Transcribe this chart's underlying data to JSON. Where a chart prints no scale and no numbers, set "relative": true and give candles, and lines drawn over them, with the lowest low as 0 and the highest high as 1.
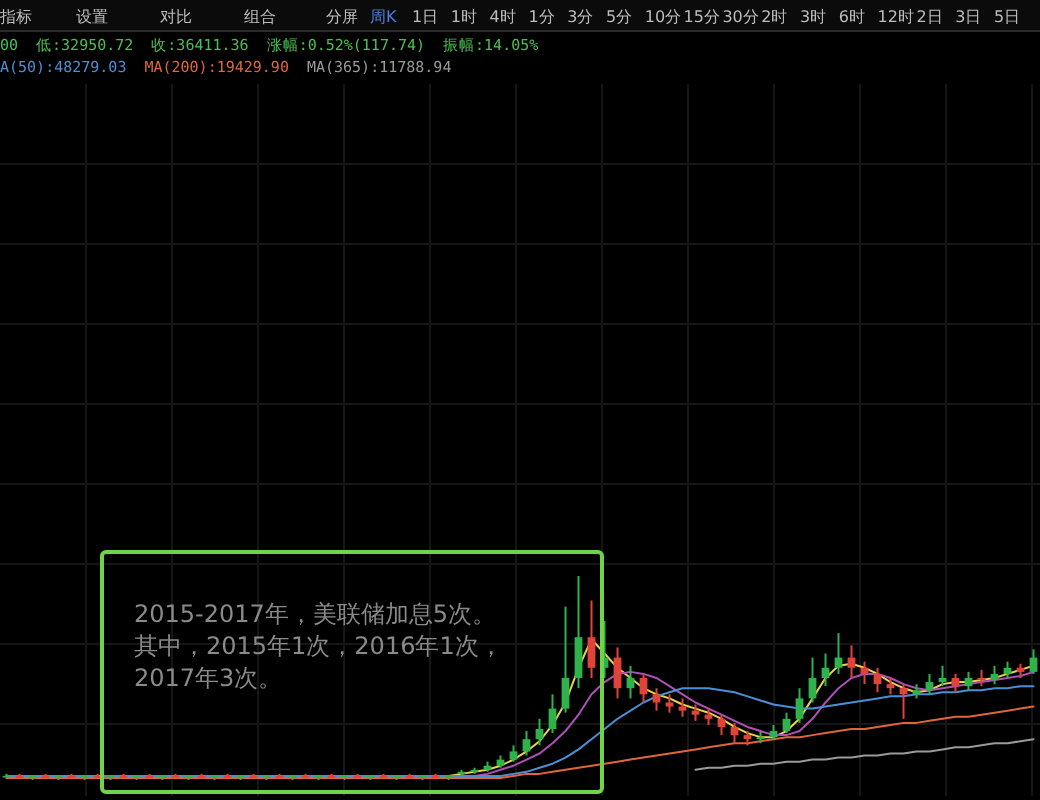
{
  "chart_data": {
    "type": "candlestick",
    "relative": true,
    "grid": true,
    "categories": [
      null,
      null,
      null,
      null,
      null,
      null,
      null,
      null,
      null,
      null,
      null,
      null,
      null,
      null,
      null,
      null,
      null,
      null,
      null,
      null,
      null,
      null,
      null,
      null,
      null,
      null,
      null,
      null,
      null,
      null,
      null,
      null,
      null,
      null,
      null,
      null,
      null,
      null,
      null,
      null,
      null,
      null,
      null,
      null,
      null,
      null,
      null,
      null,
      null,
      null,
      null,
      null,
      null,
      null,
      null,
      null,
      null,
      null,
      null,
      null,
      null,
      null,
      null,
      null,
      null,
      null,
      null,
      null,
      null,
      null,
      null,
      null,
      null,
      null,
      null,
      null,
      null,
      null,
      null,
      null
    ],
    "ohlc": [
      [
        0.02,
        0.03,
        0.01,
        0.02
      ],
      [
        0.02,
        0.03,
        0.01,
        0.01
      ],
      [
        0.01,
        0.02,
        0,
        0.02
      ],
      [
        0.02,
        0.03,
        0.01,
        0.01
      ],
      [
        0.01,
        0.02,
        0,
        0.02
      ],
      [
        0.02,
        0.03,
        0.01,
        0.01
      ],
      [
        0.01,
        0.02,
        0,
        0.02
      ],
      [
        0.02,
        0.03,
        0.01,
        0.01
      ],
      [
        0.01,
        0.02,
        0,
        0.02
      ],
      [
        0.02,
        0.03,
        0.01,
        0.01
      ],
      [
        0.01,
        0.02,
        0,
        0.02
      ],
      [
        0.02,
        0.03,
        0.01,
        0.01
      ],
      [
        0.01,
        0.02,
        0,
        0.02
      ],
      [
        0.02,
        0.03,
        0.01,
        0.01
      ],
      [
        0.01,
        0.02,
        0,
        0.02
      ],
      [
        0.02,
        0.03,
        0.01,
        0.01
      ],
      [
        0.01,
        0.02,
        0,
        0.02
      ],
      [
        0.02,
        0.03,
        0.01,
        0.01
      ],
      [
        0.01,
        0.02,
        0,
        0.02
      ],
      [
        0.02,
        0.03,
        0.01,
        0.01
      ],
      [
        0.01,
        0.02,
        0,
        0.02
      ],
      [
        0.02,
        0.03,
        0.01,
        0.01
      ],
      [
        0.01,
        0.02,
        0,
        0.02
      ],
      [
        0.02,
        0.03,
        0.01,
        0.01
      ],
      [
        0.01,
        0.02,
        0,
        0.02
      ],
      [
        0.02,
        0.03,
        0.01,
        0.01
      ],
      [
        0.01,
        0.02,
        0,
        0.02
      ],
      [
        0.02,
        0.03,
        0.01,
        0.01
      ],
      [
        0.01,
        0.02,
        0,
        0.02
      ],
      [
        0.02,
        0.03,
        0.01,
        0.01
      ],
      [
        0.01,
        0.02,
        0,
        0.02
      ],
      [
        0.02,
        0.03,
        0.01,
        0.01
      ],
      [
        0.01,
        0.02,
        0,
        0.02
      ],
      [
        0.02,
        0.03,
        0.01,
        0.01
      ],
      [
        0.01,
        0.02,
        0,
        0.02
      ],
      [
        0.03,
        0.05,
        0.02,
        0.04
      ],
      [
        0.04,
        0.06,
        0.03,
        0.05
      ],
      [
        0.05,
        0.09,
        0.04,
        0.07
      ],
      [
        0.07,
        0.12,
        0.06,
        0.1
      ],
      [
        0.1,
        0.17,
        0.09,
        0.14
      ],
      [
        0.14,
        0.24,
        0.12,
        0.2
      ],
      [
        0.2,
        0.3,
        0.17,
        0.25
      ],
      [
        0.25,
        0.42,
        0.23,
        0.35
      ],
      [
        0.35,
        0.85,
        0.33,
        0.5
      ],
      [
        0.5,
        1,
        0.45,
        0.7
      ],
      [
        0.7,
        0.88,
        0.5,
        0.55
      ],
      [
        0.55,
        0.78,
        0.5,
        0.6
      ],
      [
        0.6,
        0.65,
        0.4,
        0.45
      ],
      [
        0.45,
        0.56,
        0.4,
        0.5
      ],
      [
        0.5,
        0.52,
        0.38,
        0.42
      ],
      [
        0.42,
        0.45,
        0.34,
        0.38
      ],
      [
        0.38,
        0.42,
        0.33,
        0.36
      ],
      [
        0.36,
        0.4,
        0.31,
        0.34
      ],
      [
        0.34,
        0.37,
        0.29,
        0.32
      ],
      [
        0.32,
        0.35,
        0.27,
        0.3
      ],
      [
        0.3,
        0.32,
        0.22,
        0.26
      ],
      [
        0.26,
        0.28,
        0.18,
        0.22
      ],
      [
        0.22,
        0.24,
        0.17,
        0.2
      ],
      [
        0.2,
        0.24,
        0.18,
        0.21
      ],
      [
        0.21,
        0.27,
        0.2,
        0.24
      ],
      [
        0.24,
        0.33,
        0.23,
        0.3
      ],
      [
        0.3,
        0.45,
        0.28,
        0.4
      ],
      [
        0.4,
        0.6,
        0.38,
        0.5
      ],
      [
        0.5,
        0.62,
        0.46,
        0.55
      ],
      [
        0.55,
        0.72,
        0.52,
        0.6
      ],
      [
        0.6,
        0.66,
        0.5,
        0.55
      ],
      [
        0.55,
        0.58,
        0.47,
        0.52
      ],
      [
        0.52,
        0.55,
        0.43,
        0.47
      ],
      [
        0.47,
        0.5,
        0.42,
        0.45
      ],
      [
        0.45,
        0.47,
        0.3,
        0.42
      ],
      [
        0.42,
        0.47,
        0.4,
        0.44
      ],
      [
        0.44,
        0.52,
        0.42,
        0.48
      ],
      [
        0.48,
        0.56,
        0.46,
        0.5
      ],
      [
        0.5,
        0.52,
        0.43,
        0.46
      ],
      [
        0.46,
        0.53,
        0.44,
        0.5
      ],
      [
        0.5,
        0.54,
        0.46,
        0.49
      ],
      [
        0.49,
        0.56,
        0.47,
        0.52
      ],
      [
        0.52,
        0.58,
        0.5,
        0.55
      ],
      [
        0.55,
        0.57,
        0.5,
        0.53
      ],
      [
        0.53,
        0.64,
        0.52,
        0.6
      ]
    ],
    "series": [
      {
        "type": "line",
        "color": "#e8d44d",
        "values": [
          0.02,
          0.02,
          0.02,
          0.02,
          0.02,
          0.02,
          0.02,
          0.02,
          0.02,
          0.02,
          0.02,
          0.02,
          0.02,
          0.02,
          0.02,
          0.02,
          0.02,
          0.02,
          0.02,
          0.02,
          0.02,
          0.02,
          0.02,
          0.02,
          0.02,
          0.02,
          0.02,
          0.02,
          0.02,
          0.02,
          0.02,
          0.02,
          0.02,
          0.02,
          0.02,
          0.03,
          0.04,
          0.05,
          0.07,
          0.1,
          0.14,
          0.19,
          0.27,
          0.38,
          0.55,
          0.69,
          0.62,
          0.55,
          0.5,
          0.45,
          0.42,
          0.4,
          0.37,
          0.35,
          0.33,
          0.3,
          0.26,
          0.23,
          0.21,
          0.21,
          0.24,
          0.3,
          0.4,
          0.5,
          0.56,
          0.57,
          0.55,
          0.52,
          0.48,
          0.45,
          0.43,
          0.44,
          0.47,
          0.48,
          0.48,
          0.49,
          0.5,
          0.52,
          0.54,
          0.56
        ]
      },
      {
        "type": "line",
        "color": "#b04fb8",
        "values": [
          null,
          null,
          null,
          null,
          null,
          null,
          null,
          null,
          null,
          null,
          null,
          null,
          null,
          null,
          null,
          null,
          null,
          null,
          null,
          null,
          null,
          null,
          null,
          null,
          null,
          null,
          null,
          null,
          null,
          null,
          null,
          null,
          null,
          null,
          null,
          null,
          0.02,
          0.03,
          0.05,
          0.07,
          0.1,
          0.13,
          0.18,
          0.24,
          0.32,
          0.42,
          0.48,
          0.52,
          0.53,
          0.52,
          0.5,
          0.46,
          0.42,
          0.38,
          0.35,
          0.32,
          0.29,
          0.26,
          0.24,
          0.22,
          0.22,
          0.24,
          0.3,
          0.38,
          0.45,
          0.5,
          0.52,
          0.52,
          0.5,
          0.47,
          0.45,
          0.44,
          0.45,
          0.46,
          0.47,
          0.48,
          0.49,
          0.5,
          0.51,
          0.53
        ]
      },
      {
        "type": "line",
        "color": "#4a8fd6",
        "values": [
          0.02,
          0.02,
          0.02,
          0.02,
          0.02,
          0.02,
          0.02,
          0.02,
          0.02,
          0.02,
          0.02,
          0.02,
          0.02,
          0.02,
          0.02,
          0.02,
          0.02,
          0.02,
          0.02,
          0.02,
          0.02,
          0.02,
          0.02,
          0.02,
          0.02,
          0.02,
          0.02,
          0.02,
          0.02,
          0.02,
          0.02,
          0.02,
          0.02,
          0.02,
          0.02,
          0.02,
          0.02,
          0.02,
          0.02,
          0.03,
          0.04,
          0.06,
          0.08,
          0.11,
          0.15,
          0.2,
          0.25,
          0.3,
          0.34,
          0.38,
          0.41,
          0.43,
          0.45,
          0.45,
          0.45,
          0.44,
          0.43,
          0.41,
          0.39,
          0.37,
          0.36,
          0.35,
          0.35,
          0.36,
          0.37,
          0.38,
          0.39,
          0.4,
          0.41,
          0.41,
          0.42,
          0.42,
          0.43,
          0.43,
          0.44,
          0.44,
          0.45,
          0.45,
          0.46,
          0.46
        ]
      },
      {
        "type": "line",
        "color": "#e0663a",
        "values": [
          0.01,
          0.01,
          0.01,
          0.01,
          0.01,
          0.01,
          0.01,
          0.01,
          0.01,
          0.01,
          0.01,
          0.01,
          0.01,
          0.01,
          0.01,
          0.01,
          0.01,
          0.01,
          0.01,
          0.01,
          0.01,
          0.01,
          0.01,
          0.01,
          0.01,
          0.01,
          0.01,
          0.01,
          0.01,
          0.01,
          0.01,
          0.01,
          0.01,
          0.01,
          0.01,
          0.01,
          0.01,
          0.01,
          0.01,
          0.02,
          0.03,
          0.03,
          0.04,
          0.05,
          0.06,
          0.07,
          0.08,
          0.09,
          0.1,
          0.11,
          0.12,
          0.13,
          0.14,
          0.15,
          0.16,
          0.17,
          0.18,
          0.18,
          0.19,
          0.2,
          0.21,
          0.21,
          0.22,
          0.23,
          0.24,
          0.25,
          0.25,
          0.26,
          0.27,
          0.28,
          0.28,
          0.29,
          0.3,
          0.31,
          0.31,
          0.32,
          0.33,
          0.34,
          0.35,
          0.36
        ]
      },
      {
        "type": "line",
        "color": "#9a9a9a",
        "values": [
          null,
          null,
          null,
          null,
          null,
          null,
          null,
          null,
          null,
          null,
          null,
          null,
          null,
          null,
          null,
          null,
          null,
          null,
          null,
          null,
          null,
          null,
          null,
          null,
          null,
          null,
          null,
          null,
          null,
          null,
          null,
          null,
          null,
          null,
          null,
          null,
          null,
          null,
          null,
          null,
          null,
          null,
          null,
          null,
          null,
          null,
          null,
          null,
          null,
          null,
          null,
          null,
          null,
          0.05,
          0.06,
          0.06,
          0.07,
          0.07,
          0.08,
          0.08,
          0.09,
          0.09,
          0.1,
          0.1,
          0.11,
          0.11,
          0.12,
          0.12,
          0.13,
          0.13,
          0.14,
          0.14,
          0.15,
          0.16,
          0.16,
          0.17,
          0.18,
          0.18,
          0.19,
          0.2
        ]
      }
    ],
    "annotations": [
      "指标",
      "设置",
      "对比",
      "组合",
      "分屏",
      "周K",
      "1日",
      "1时",
      "4时",
      "1分",
      "3分",
      "5分",
      "10分",
      "15分",
      "30分",
      "2时",
      "3时",
      "6时",
      "12时",
      "2日",
      "3日",
      "5日",
      "00",
      "低:32950.72",
      "收:36411.36",
      "涨幅:0.52%(117.74)",
      "振幅:14.05%",
      "A(50):48279.03",
      "MA(200):19429.90",
      "MA(365):11788.94",
      "2015-2017年，美联储加息5次。其中，2015年1次，2016年1次，2017年3次。"
    ]
  }
}
